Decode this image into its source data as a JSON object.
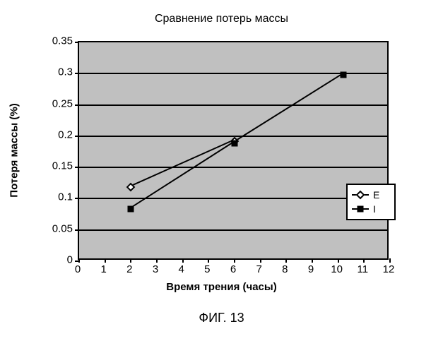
{
  "chart": {
    "type": "line",
    "title": "Сравнение потерь массы",
    "title_fontsize": 16,
    "xlabel": "Время трения (часы)",
    "ylabel": "Потеря массы (%)",
    "label_fontsize": 15,
    "caption": "ФИГ. 13",
    "background_color": "#ffffff",
    "plot_background_color": "#c0c0c0",
    "grid_color": "#000000",
    "axis_color": "#000000",
    "xlim": [
      0,
      12
    ],
    "ylim": [
      0,
      0.35
    ],
    "xticks": [
      0,
      1,
      2,
      3,
      4,
      5,
      6,
      7,
      8,
      9,
      10,
      11,
      12
    ],
    "yticks": [
      0,
      0.05,
      0.1,
      0.15,
      0.2,
      0.25,
      0.3,
      0.35
    ],
    "ytick_labels": [
      "0",
      "0.05",
      "0.1",
      "0.15",
      "0.2",
      "0.25",
      "0.3",
      "0.35"
    ],
    "grid_y": true,
    "grid_x": false,
    "line_width": 2,
    "series": [
      {
        "name": "E",
        "x": [
          2,
          6
        ],
        "y": [
          0.118,
          0.192
        ],
        "color": "#000000",
        "marker": "diamond-open",
        "marker_size": 9
      },
      {
        "name": "I",
        "x": [
          2,
          6,
          10.2
        ],
        "y": [
          0.083,
          0.189,
          0.298
        ],
        "color": "#000000",
        "marker": "square-filled",
        "marker_size": 9
      }
    ],
    "legend": {
      "position": "inside-right-lower",
      "background": "#ffffff",
      "border_color": "#000000"
    }
  }
}
